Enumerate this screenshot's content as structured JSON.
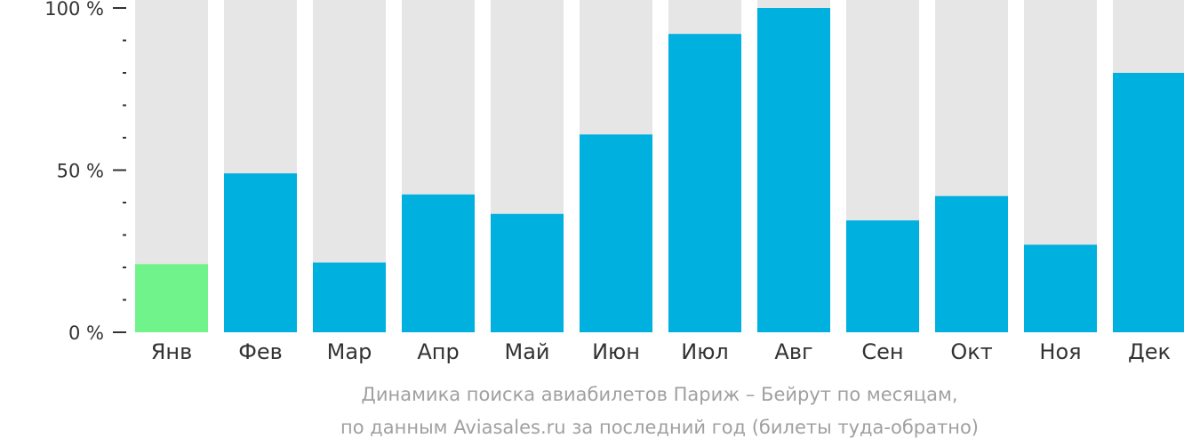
{
  "chart_data": {
    "type": "bar",
    "categories": [
      "Янв",
      "Фев",
      "Мар",
      "Апр",
      "Май",
      "Июн",
      "Июл",
      "Авг",
      "Сен",
      "Окт",
      "Ноя",
      "Дек"
    ],
    "values": [
      21,
      49,
      21.5,
      42.5,
      36.5,
      61,
      92,
      100,
      34.5,
      42,
      27,
      80
    ],
    "highlight_index": 0,
    "ylim": [
      0,
      100
    ],
    "yticks": [
      {
        "value": 0,
        "label": "0 %"
      },
      {
        "value": 50,
        "label": "50 %"
      },
      {
        "value": 100,
        "label": "100 %"
      }
    ],
    "minor_tick_step": 10,
    "caption_line1": "Динамика поиска авиабилетов Париж – Бейрут по месяцам,",
    "caption_line2": "по данным Aviasales.ru за последний год (билеты туда-обратно)",
    "colors": {
      "bar": "#00b0de",
      "bar_highlight": "#6ff38a",
      "bar_background": "#e6e6e6",
      "axis": "#333333",
      "caption": "#a0a0a0"
    }
  }
}
